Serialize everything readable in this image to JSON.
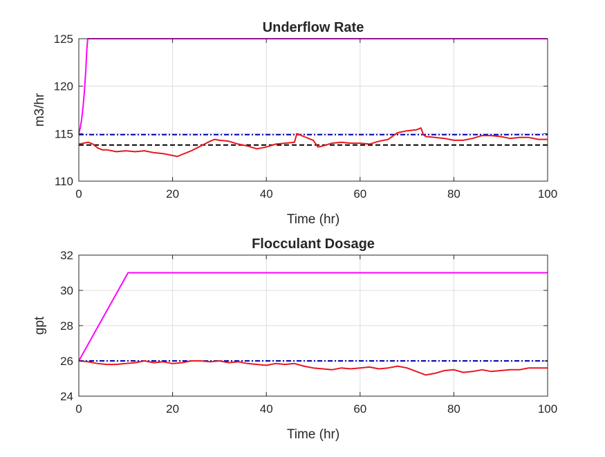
{
  "chart_data": [
    {
      "type": "line",
      "title": "Underflow Rate",
      "xlabel": "Time (hr)",
      "ylabel": "m3/hr",
      "xlim": [
        0,
        100
      ],
      "ylim": [
        110,
        125
      ],
      "xticks": [
        0,
        20,
        40,
        60,
        80,
        100
      ],
      "yticks": [
        110,
        115,
        120,
        125
      ],
      "grid": true,
      "series": [
        {
          "style": "solid",
          "color": "#ff00ff",
          "x": [
            0,
            0.3,
            0.6,
            0.9,
            1.2,
            1.5,
            1.7,
            1.9,
            100
          ],
          "y": [
            115,
            115.6,
            116.5,
            117.8,
            119.5,
            121.8,
            123.8,
            125,
            125
          ]
        },
        {
          "style": "dashdot",
          "color": "#0000b3",
          "x": [
            0,
            100
          ],
          "y": [
            114.9,
            114.9
          ]
        },
        {
          "style": "dashed",
          "color": "#000000",
          "x": [
            0,
            100
          ],
          "y": [
            113.8,
            113.8
          ]
        },
        {
          "style": "solid",
          "color": "#e8161d",
          "x": [
            0,
            1,
            2,
            3,
            4,
            5,
            6,
            8,
            10,
            12,
            14,
            16,
            18,
            20,
            21,
            22,
            24,
            26,
            28,
            29,
            30,
            32,
            34,
            36,
            38,
            40,
            42,
            44,
            46,
            46.5,
            47,
            48,
            50,
            51,
            52,
            54,
            56,
            58,
            60,
            62,
            64,
            66,
            68,
            70,
            72,
            73,
            73.5,
            74,
            76,
            78,
            80,
            82,
            84,
            86,
            88,
            90,
            92,
            94,
            96,
            98,
            100
          ],
          "y": [
            113.9,
            114,
            114.1,
            113.9,
            113.5,
            113.3,
            113.3,
            113.1,
            113.2,
            113.1,
            113.2,
            113.0,
            112.9,
            112.7,
            112.6,
            112.8,
            113.2,
            113.7,
            114.2,
            114.4,
            114.3,
            114.2,
            113.9,
            113.7,
            113.4,
            113.6,
            113.9,
            114.0,
            114.1,
            115.0,
            114.9,
            114.7,
            114.3,
            113.6,
            113.7,
            114.0,
            114.1,
            114.0,
            114.0,
            113.9,
            114.2,
            114.4,
            115.1,
            115.3,
            115.4,
            115.6,
            114.9,
            114.7,
            114.6,
            114.5,
            114.3,
            114.3,
            114.5,
            114.8,
            114.8,
            114.7,
            114.5,
            114.6,
            114.6,
            114.4,
            114.4
          ]
        }
      ]
    },
    {
      "type": "line",
      "title": "Flocculant Dosage",
      "xlabel": "Time (hr)",
      "ylabel": "gpt",
      "xlim": [
        0,
        100
      ],
      "ylim": [
        24,
        32
      ],
      "xticks": [
        0,
        20,
        40,
        60,
        80,
        100
      ],
      "yticks": [
        24,
        26,
        28,
        30,
        32
      ],
      "grid": true,
      "series": [
        {
          "style": "solid",
          "color": "#ff00ff",
          "x": [
            0,
            10.5,
            100
          ],
          "y": [
            26.0,
            31.0,
            31.0
          ]
        },
        {
          "style": "dashdot",
          "color": "#0000b3",
          "x": [
            0,
            100
          ],
          "y": [
            26.0,
            26.0
          ]
        },
        {
          "style": "solid",
          "color": "#e8161d",
          "x": [
            0,
            2,
            4,
            6,
            8,
            10,
            12,
            14,
            16,
            18,
            20,
            22,
            24,
            26,
            28,
            30,
            32,
            34,
            36,
            38,
            40,
            42,
            44,
            46,
            48,
            50,
            52,
            54,
            56,
            58,
            60,
            62,
            64,
            66,
            68,
            70,
            72,
            74,
            76,
            78,
            80,
            82,
            84,
            86,
            88,
            90,
            92,
            94,
            96,
            98,
            100
          ],
          "y": [
            26.0,
            25.95,
            25.85,
            25.8,
            25.8,
            25.85,
            25.9,
            26.0,
            25.9,
            25.95,
            25.85,
            25.9,
            26.0,
            26.0,
            25.95,
            26.0,
            25.9,
            25.95,
            25.85,
            25.8,
            25.75,
            25.85,
            25.8,
            25.85,
            25.7,
            25.6,
            25.55,
            25.5,
            25.6,
            25.55,
            25.6,
            25.65,
            25.55,
            25.6,
            25.7,
            25.6,
            25.4,
            25.2,
            25.3,
            25.45,
            25.5,
            25.35,
            25.4,
            25.5,
            25.4,
            25.45,
            25.5,
            25.5,
            25.6,
            25.6,
            25.6
          ]
        }
      ]
    }
  ]
}
